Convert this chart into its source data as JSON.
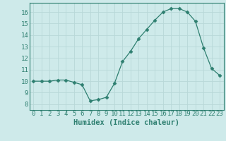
{
  "x": [
    0,
    1,
    2,
    3,
    4,
    5,
    6,
    7,
    8,
    9,
    10,
    11,
    12,
    13,
    14,
    15,
    16,
    17,
    18,
    19,
    20,
    21,
    22,
    23
  ],
  "y": [
    10,
    10,
    10,
    10.1,
    10.1,
    9.9,
    9.7,
    8.3,
    8.4,
    8.6,
    9.8,
    11.7,
    12.6,
    13.7,
    14.5,
    15.3,
    16.0,
    16.3,
    16.3,
    16.0,
    15.2,
    12.9,
    11.1,
    10.5
  ],
  "xlabel": "Humidex (Indice chaleur)",
  "xlim": [
    -0.5,
    23.5
  ],
  "ylim": [
    7.5,
    16.8
  ],
  "yticks": [
    8,
    9,
    10,
    11,
    12,
    13,
    14,
    15,
    16
  ],
  "xtick_labels": [
    "0",
    "1",
    "2",
    "3",
    "4",
    "5",
    "6",
    "7",
    "8",
    "9",
    "10",
    "11",
    "12",
    "13",
    "14",
    "15",
    "16",
    "17",
    "18",
    "19",
    "20",
    "21",
    "22",
    "23"
  ],
  "line_color": "#2e7f70",
  "marker": "D",
  "marker_size": 2.5,
  "bg_color": "#ceeaea",
  "grid_color": "#b8d8d8",
  "label_color": "#2e7f70",
  "tick_color": "#2e7f70",
  "spine_color": "#2e7f70",
  "xlabel_fontsize": 7.5,
  "tick_fontsize": 6.5
}
